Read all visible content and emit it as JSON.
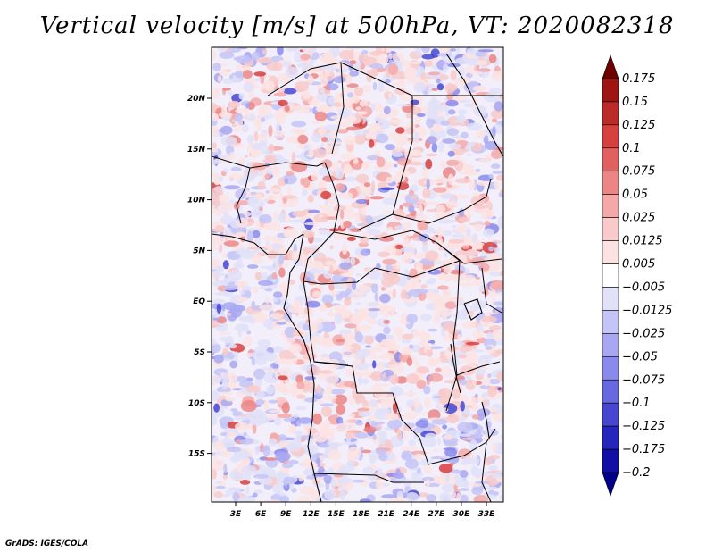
{
  "title": "Vertical velocity [m/s] at 500hPa, VT: 2020082318",
  "credit": "GrADS: IGES/COLA",
  "map": {
    "lat_labels": [
      "20N",
      "15N",
      "10N",
      "5N",
      "EQ",
      "5S",
      "10S",
      "15S"
    ],
    "lon_labels": [
      "3E",
      "6E",
      "9E",
      "12E",
      "15E",
      "18E",
      "21E",
      "24E",
      "27E",
      "30E",
      "33E"
    ],
    "background_color": "#f2eefa"
  },
  "colorbar": {
    "labels": [
      "0.175",
      "0.15",
      "0.125",
      "0.1",
      "0.075",
      "0.05",
      "0.025",
      "0.0125",
      "0.005",
      "−0.005",
      "−0.0125",
      "−0.025",
      "−0.05",
      "−0.075",
      "−0.1",
      "−0.125",
      "−0.175",
      "−0.2"
    ],
    "colors": [
      "#6e0000",
      "#a01414",
      "#bd2a2a",
      "#d84040",
      "#e26060",
      "#ec8686",
      "#f4a8a8",
      "#f8caca",
      "#fbe3e3",
      "#ffffff",
      "#e1e1f8",
      "#c4c4f6",
      "#a8a8f2",
      "#8a8aec",
      "#6868e0",
      "#4646d2",
      "#2626be",
      "#120ea6",
      "#000088"
    ]
  }
}
